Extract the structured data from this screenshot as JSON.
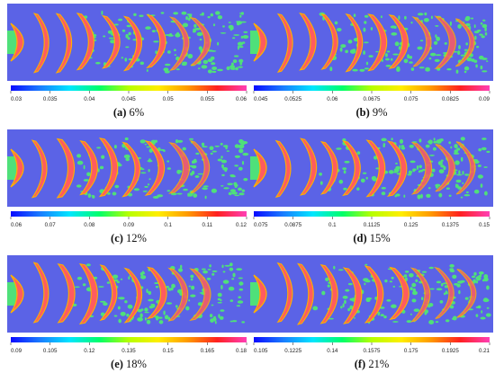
{
  "colormap": [
    "#0a0aff",
    "#1a7dff",
    "#00e6ff",
    "#00ff6a",
    "#b7ff00",
    "#ffee00",
    "#ff9a00",
    "#ff2020",
    "#ff3fb5"
  ],
  "colors": {
    "background": "#5b63e6",
    "ring": "#ff5b60",
    "edge": "#ffb000",
    "turbulence": "#4fe07a"
  },
  "panels": [
    {
      "label": "(a)",
      "value": "6%",
      "ticks": [
        "0.03",
        "0.035",
        "0.04",
        "0.045",
        "0.05",
        "0.055",
        "0.06"
      ]
    },
    {
      "label": "(b)",
      "value": "9%",
      "ticks": [
        "0.045",
        "0.0525",
        "0.06",
        "0.0675",
        "0.075",
        "0.0825",
        "0.09"
      ]
    },
    {
      "label": "(c)",
      "value": "12%",
      "ticks": [
        "0.06",
        "0.07",
        "0.08",
        "0.09",
        "0.1",
        "0.11",
        "0.12"
      ]
    },
    {
      "label": "(d)",
      "value": "15%",
      "ticks": [
        "0.075",
        "0.0875",
        "0.1",
        "0.1125",
        "0.125",
        "0.1375",
        "0.15"
      ]
    },
    {
      "label": "(e)",
      "value": "18%",
      "ticks": [
        "0.09",
        "0.105",
        "0.12",
        "0.135",
        "0.15",
        "0.165",
        "0.18"
      ]
    },
    {
      "label": "(f)",
      "value": "21%",
      "ticks": [
        "0.105",
        "0.1225",
        "0.14",
        "0.1575",
        "0.175",
        "0.1925",
        "0.21"
      ]
    }
  ]
}
